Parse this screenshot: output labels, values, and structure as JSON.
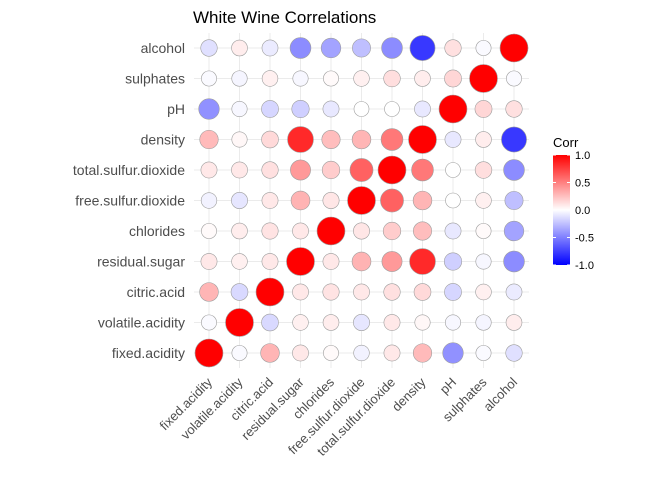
{
  "chart_data": {
    "type": "heatmap",
    "title": "White Wine Correlations",
    "variables": [
      "fixed.acidity",
      "volatile.acidity",
      "citric.acid",
      "residual.sugar",
      "chlorides",
      "free.sulfur.dioxide",
      "total.sulfur.dioxide",
      "density",
      "pH",
      "sulphates",
      "alcohol"
    ],
    "matrix": [
      [
        1.0,
        -0.02,
        0.29,
        0.09,
        0.02,
        -0.05,
        0.09,
        0.27,
        -0.43,
        -0.02,
        -0.12
      ],
      [
        -0.02,
        1.0,
        -0.15,
        0.06,
        0.07,
        -0.1,
        0.09,
        0.03,
        -0.03,
        -0.04,
        0.07
      ],
      [
        0.29,
        -0.15,
        1.0,
        0.09,
        0.11,
        0.09,
        0.12,
        0.15,
        -0.16,
        0.06,
        -0.08
      ],
      [
        0.09,
        0.06,
        0.09,
        1.0,
        0.09,
        0.3,
        0.4,
        0.84,
        -0.19,
        -0.03,
        -0.45
      ],
      [
        0.02,
        0.07,
        0.11,
        0.09,
        1.0,
        0.1,
        0.2,
        0.26,
        -0.09,
        0.02,
        -0.36
      ],
      [
        -0.05,
        -0.1,
        0.09,
        0.3,
        0.1,
        1.0,
        0.62,
        0.29,
        0.0,
        0.06,
        -0.25
      ],
      [
        0.09,
        0.09,
        0.12,
        0.4,
        0.2,
        0.62,
        1.0,
        0.53,
        0.0,
        0.13,
        -0.45
      ],
      [
        0.27,
        0.03,
        0.15,
        0.84,
        0.26,
        0.29,
        0.53,
        1.0,
        -0.09,
        0.07,
        -0.78
      ],
      [
        -0.43,
        -0.03,
        -0.16,
        -0.19,
        -0.09,
        0.0,
        0.0,
        -0.09,
        1.0,
        0.16,
        0.12
      ],
      [
        -0.02,
        -0.04,
        0.06,
        -0.03,
        0.02,
        0.06,
        0.13,
        0.07,
        0.16,
        1.0,
        -0.02
      ],
      [
        -0.12,
        0.07,
        -0.08,
        -0.45,
        -0.36,
        -0.25,
        -0.45,
        -0.78,
        0.12,
        -0.02,
        1.0
      ]
    ],
    "legend": {
      "title": "Corr",
      "ticks": [
        1.0,
        0.5,
        0.0,
        -0.5,
        -1.0
      ],
      "tick_labels": [
        "1.0",
        "0.5",
        "0.0",
        "-0.5",
        "-1.0"
      ],
      "limits": [
        -1,
        1
      ],
      "position": "right"
    },
    "colors": {
      "low": "#0000ff",
      "mid": "#ffffff",
      "high": "#ff0000"
    },
    "grid": true
  }
}
